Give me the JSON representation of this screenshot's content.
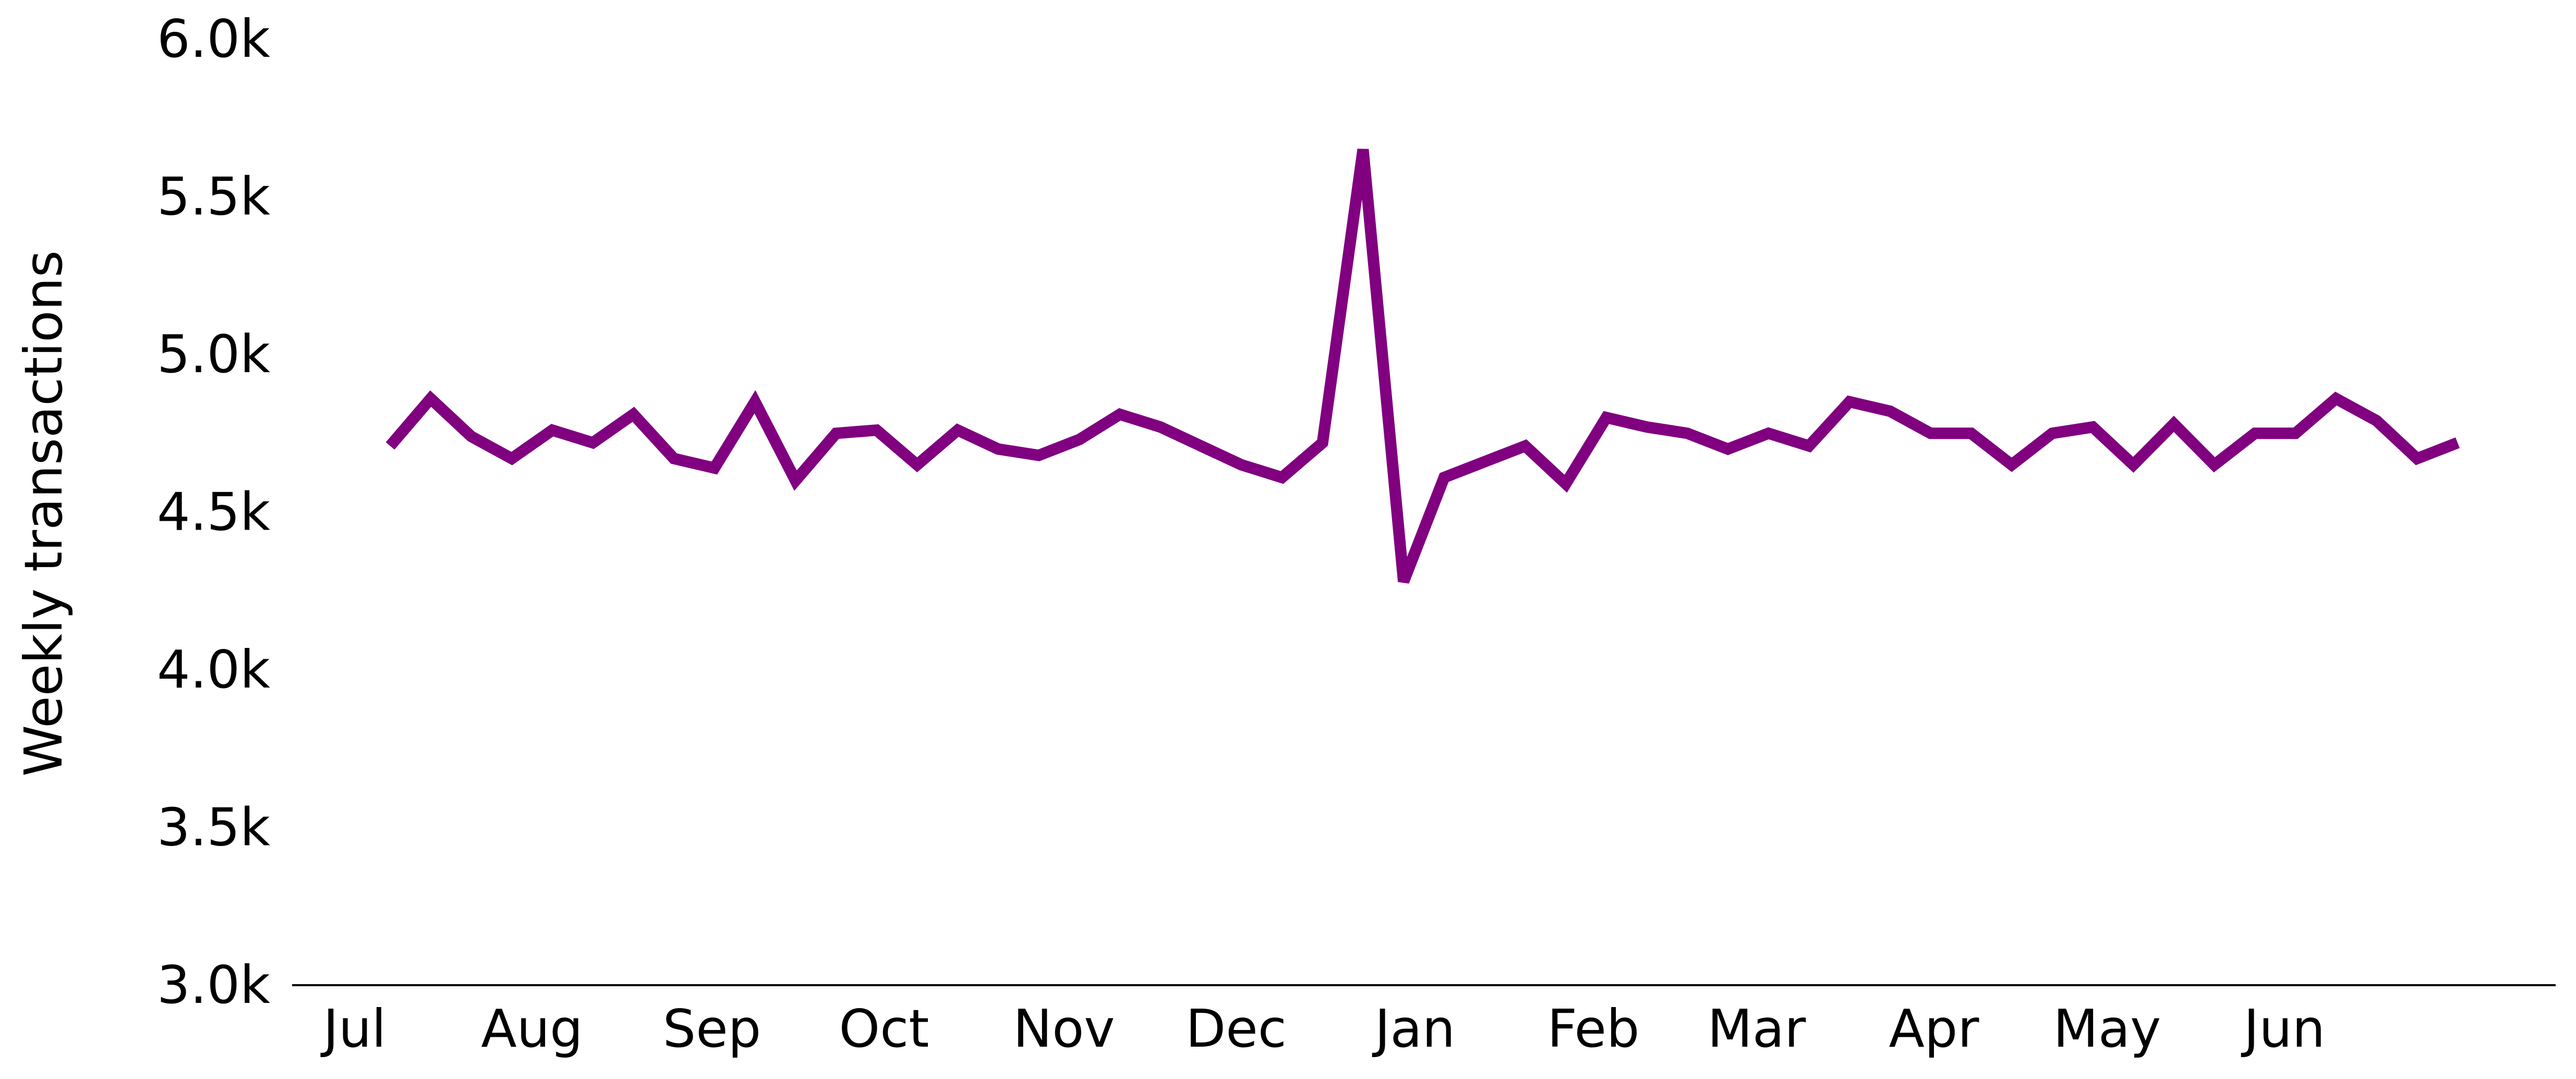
{
  "chart_data": {
    "type": "line",
    "title": "",
    "xlabel": "",
    "ylabel": "Weekly transactions",
    "ylim": [
      3000,
      6000
    ],
    "yticks": [
      {
        "value": 3000,
        "label": "3.0k"
      },
      {
        "value": 3500,
        "label": "3.5k"
      },
      {
        "value": 4000,
        "label": "4.0k"
      },
      {
        "value": 4500,
        "label": "4.5k"
      },
      {
        "value": 5000,
        "label": "5.0k"
      },
      {
        "value": 5500,
        "label": "5.5k"
      },
      {
        "value": 6000,
        "label": "6.0k"
      }
    ],
    "xticks": [
      "Jul",
      "Aug",
      "Sep",
      "Oct",
      "Nov",
      "Dec",
      "Jan",
      "Feb",
      "Mar",
      "Apr",
      "May",
      "Jun"
    ],
    "grid": false,
    "legend": "none",
    "line_color": "#800080",
    "series": [
      {
        "values": [
          4710,
          4860,
          4740,
          4670,
          4760,
          4720,
          4810,
          4670,
          4640,
          4850,
          4600,
          4750,
          4760,
          4650,
          4760,
          4700,
          4680,
          4730,
          4810,
          4770,
          4710,
          4650,
          4610,
          4720,
          5650,
          4280,
          4610,
          4660,
          4710,
          4590,
          4800,
          4770,
          4750,
          4700,
          4750,
          4710,
          4850,
          4820,
          4750,
          4750,
          4650,
          4750,
          4770,
          4650,
          4780,
          4650,
          4750,
          4750,
          4860,
          4790,
          4670,
          4720
        ]
      }
    ]
  }
}
